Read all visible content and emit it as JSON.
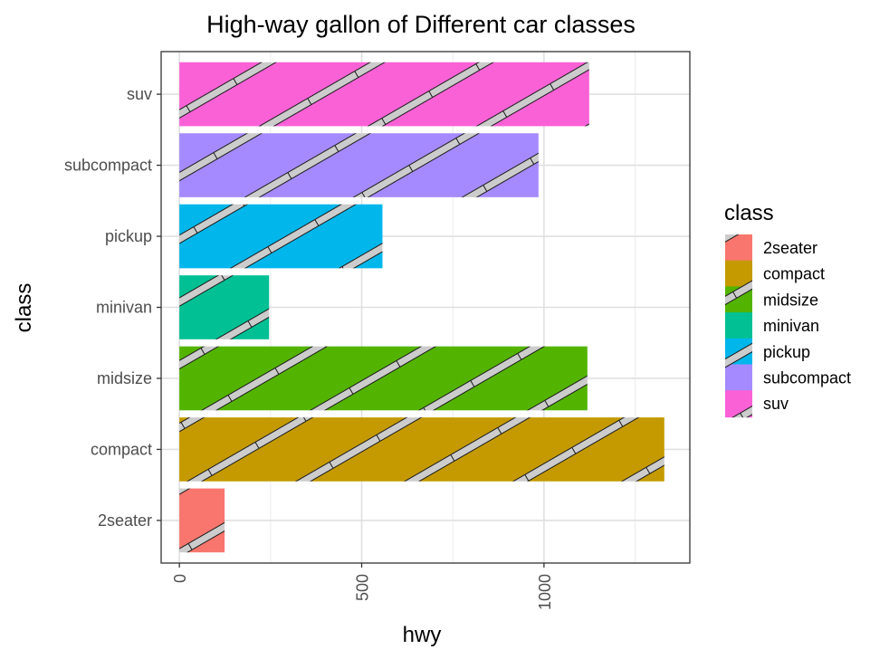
{
  "chart_data": {
    "type": "bar",
    "orientation": "horizontal",
    "title": "High-way gallon of Different car classes",
    "xlabel": "hwy",
    "ylabel": "class",
    "categories": [
      "2seater",
      "compact",
      "midsize",
      "minivan",
      "pickup",
      "subcompact",
      "suv"
    ],
    "values": [
      124,
      1330,
      1119,
      246,
      557,
      985,
      1124
    ],
    "xlim": [
      -50,
      1400
    ],
    "xticks": [
      0,
      500,
      1000
    ],
    "xtick_labels": [
      "0",
      "500",
      "1000"
    ],
    "grid": true,
    "pattern": "diagonal stripes",
    "legend": {
      "title": "class",
      "position": "right",
      "entries": [
        "2seater",
        "compact",
        "midsize",
        "minivan",
        "pickup",
        "subcompact",
        "suv"
      ]
    },
    "colors": {
      "2seater": "#F8766D",
      "compact": "#C49A00",
      "midsize": "#53B400",
      "minivan": "#00C094",
      "pickup": "#00B6EB",
      "subcompact": "#A58AFF",
      "suv": "#FB61D7"
    },
    "stripe_color": "#cccccc"
  }
}
